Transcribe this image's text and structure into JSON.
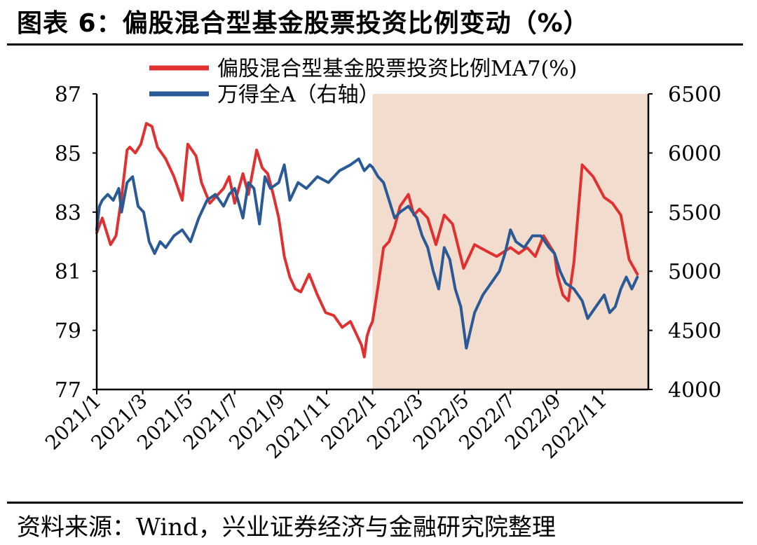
{
  "title": "图表 6：偏股混合型基金股票投资比例变动（%）",
  "source": "资料来源：Wind，兴业证券经济与金融研究院整理",
  "chart_data": {
    "type": "line",
    "legend_position": "top",
    "grid": false,
    "highlight_period": {
      "from": "2022/1",
      "to": "2022/12",
      "color": "#f2dccd"
    },
    "x_ticks": [
      "2021/1",
      "2021/3",
      "2021/5",
      "2021/7",
      "2021/9",
      "2021/11",
      "2022/1",
      "2022/3",
      "2022/5",
      "2022/7",
      "2022/9",
      "2022/11"
    ],
    "xlim": [
      "2021/1",
      "2022/12"
    ],
    "y_left": {
      "ylim": [
        77,
        87
      ],
      "ticks": [
        "87",
        "85",
        "83",
        "81",
        "79",
        "77"
      ]
    },
    "y_right": {
      "ylim": [
        4000,
        6500
      ],
      "ticks": [
        "6500",
        "6000",
        "5500",
        "5000",
        "4500",
        "4000"
      ]
    },
    "series": [
      {
        "name": "偏股混合型基金股票投资比例MA7(%)",
        "axis": "left",
        "color": "#e03030",
        "x": [
          2021.0,
          2021.02,
          2021.05,
          2021.07,
          2021.09,
          2021.11,
          2021.12,
          2021.14,
          2021.16,
          2021.18,
          2021.2,
          2021.22,
          2021.25,
          2021.28,
          2021.31,
          2021.33,
          2021.36,
          2021.38,
          2021.41,
          2021.43,
          2021.46,
          2021.48,
          2021.5,
          2021.53,
          2021.55,
          2021.58,
          2021.6,
          2021.62,
          2021.64,
          2021.66,
          2021.68,
          2021.7,
          2021.72,
          2021.74,
          2021.77,
          2021.8,
          2021.83,
          2021.86,
          2021.89,
          2021.92,
          2021.94,
          2021.96,
          2021.97,
          2021.98,
          2021.99,
          2022.0,
          2022.02,
          2022.04,
          2022.06,
          2022.08,
          2022.1,
          2022.13,
          2022.15,
          2022.17,
          2022.2,
          2022.23,
          2022.26,
          2022.29,
          2022.33,
          2022.37,
          2022.41,
          2022.45,
          2022.5,
          2022.53,
          2022.56,
          2022.59,
          2022.62,
          2022.64,
          2022.66,
          2022.67,
          2022.69,
          2022.71,
          2022.73,
          2022.76,
          2022.8,
          2022.84,
          2022.87,
          2022.9,
          2022.93,
          2022.96
        ],
        "values": [
          82.3,
          82.8,
          81.9,
          82.2,
          83.5,
          85.1,
          85.2,
          85.0,
          85.3,
          86.0,
          85.9,
          85.2,
          84.8,
          84.2,
          83.4,
          85.3,
          84.9,
          84.0,
          83.3,
          83.5,
          83.8,
          84.2,
          83.3,
          84.3,
          83.6,
          85.1,
          84.5,
          84.3,
          83.6,
          82.8,
          81.5,
          80.8,
          80.4,
          80.3,
          80.9,
          80.2,
          79.6,
          79.5,
          79.1,
          79.3,
          78.9,
          78.5,
          78.1,
          78.8,
          79.1,
          79.3,
          80.5,
          81.8,
          82.0,
          82.5,
          83.2,
          83.6,
          82.9,
          83.1,
          82.8,
          81.9,
          82.9,
          82.6,
          81.1,
          81.9,
          81.7,
          81.5,
          81.8,
          81.6,
          81.8,
          81.5,
          82.2,
          81.9,
          81.6,
          80.9,
          80.2,
          80.0,
          81.3,
          84.6,
          84.2,
          83.5,
          83.3,
          82.9,
          81.4,
          80.9
        ]
      },
      {
        "name": "万得全A（右轴）",
        "axis": "right",
        "color": "#2a5a96",
        "x": [
          2021.0,
          2021.01,
          2021.02,
          2021.04,
          2021.06,
          2021.08,
          2021.09,
          2021.11,
          2021.13,
          2021.15,
          2021.17,
          2021.19,
          2021.21,
          2021.23,
          2021.25,
          2021.28,
          2021.31,
          2021.34,
          2021.37,
          2021.4,
          2021.43,
          2021.46,
          2021.48,
          2021.5,
          2021.53,
          2021.55,
          2021.57,
          2021.59,
          2021.61,
          2021.63,
          2021.66,
          2021.68,
          2021.7,
          2021.73,
          2021.76,
          2021.8,
          2021.84,
          2021.88,
          2021.92,
          2021.95,
          2021.97,
          2021.99,
          2022.0,
          2022.02,
          2022.04,
          2022.06,
          2022.08,
          2022.1,
          2022.13,
          2022.16,
          2022.18,
          2022.2,
          2022.22,
          2022.24,
          2022.26,
          2022.28,
          2022.3,
          2022.32,
          2022.34,
          2022.37,
          2022.4,
          2022.43,
          2022.46,
          2022.48,
          2022.5,
          2022.52,
          2022.55,
          2022.58,
          2022.61,
          2022.64,
          2022.66,
          2022.68,
          2022.7,
          2022.73,
          2022.76,
          2022.78,
          2022.81,
          2022.84,
          2022.86,
          2022.88,
          2022.9,
          2022.92,
          2022.94,
          2022.96
        ],
        "values": [
          5350,
          5550,
          5600,
          5650,
          5600,
          5700,
          5500,
          5750,
          5800,
          5550,
          5500,
          5250,
          5150,
          5250,
          5200,
          5300,
          5350,
          5250,
          5450,
          5600,
          5650,
          5550,
          5650,
          5700,
          5450,
          5750,
          5700,
          5400,
          5800,
          5700,
          5750,
          5900,
          5600,
          5750,
          5700,
          5800,
          5750,
          5850,
          5900,
          5950,
          5850,
          5900,
          5880,
          5800,
          5750,
          5600,
          5450,
          5500,
          5550,
          5450,
          5300,
          5200,
          5000,
          4850,
          5200,
          5100,
          4850,
          4700,
          4350,
          4650,
          4800,
          4900,
          5000,
          5150,
          5350,
          5250,
          5200,
          5300,
          5300,
          5200,
          5150,
          5000,
          4900,
          4850,
          4750,
          4600,
          4700,
          4800,
          4650,
          4700,
          4850,
          4950,
          4850,
          4950
        ]
      }
    ]
  }
}
